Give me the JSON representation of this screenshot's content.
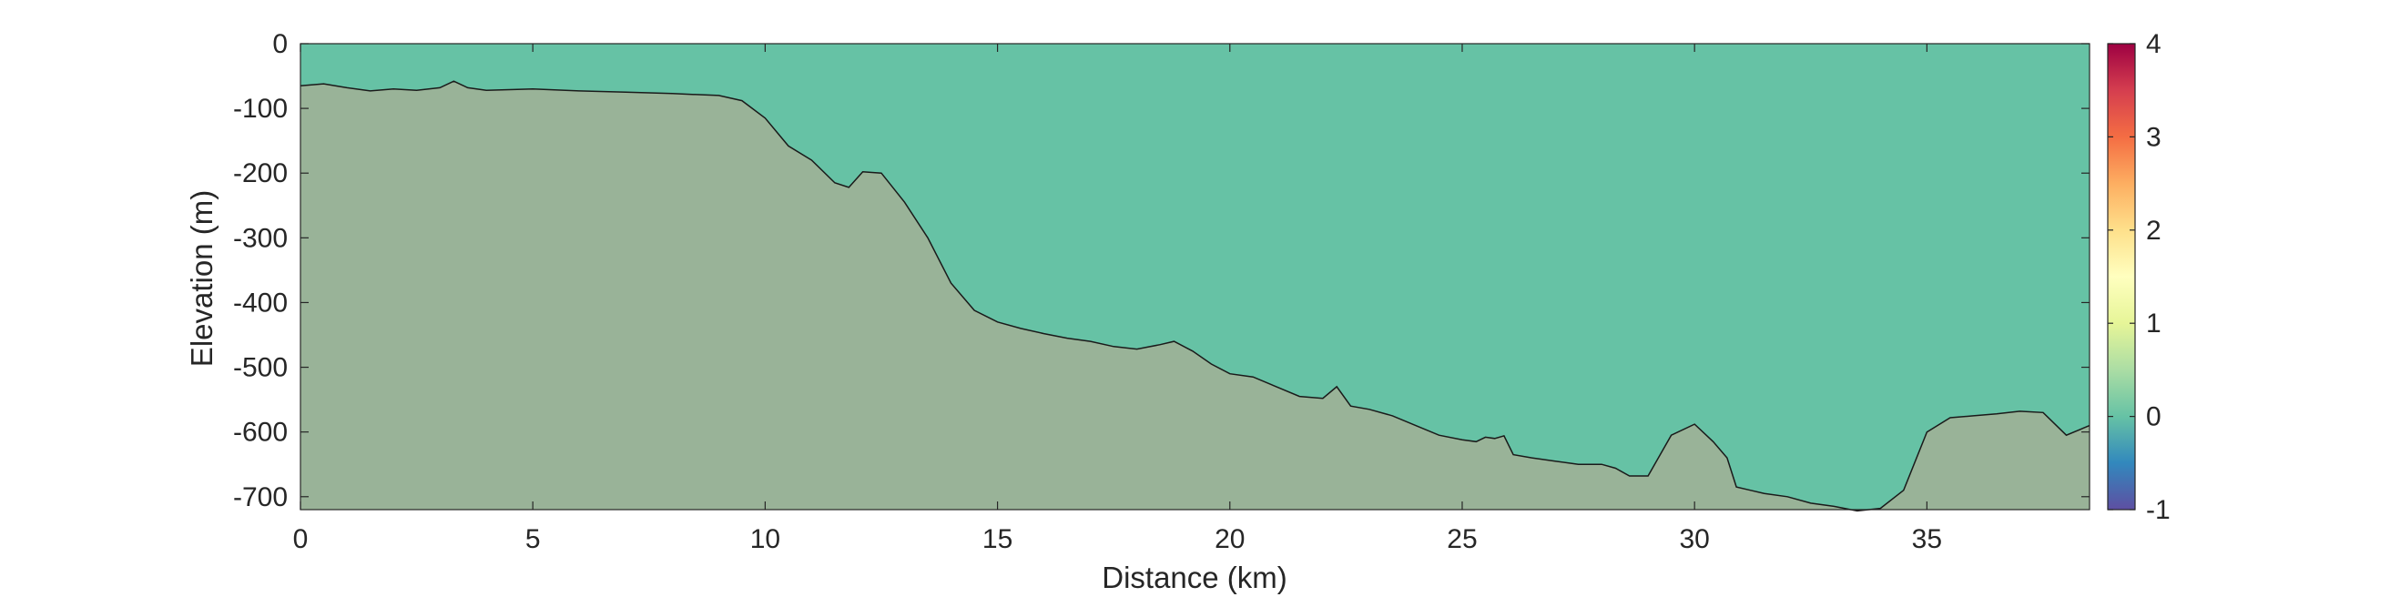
{
  "chart_data": {
    "type": "area",
    "xlabel": "Distance (km)",
    "ylabel": "Elevation (m)",
    "xlim": [
      0,
      38.5
    ],
    "ylim": [
      -720,
      0
    ],
    "x_ticks": [
      0,
      5,
      10,
      15,
      20,
      25,
      30,
      35
    ],
    "y_ticks": [
      0,
      -100,
      -200,
      -300,
      -400,
      -500,
      -600,
      -700
    ],
    "colorbar": {
      "limits": [
        -1,
        4
      ],
      "ticks": [
        4,
        3,
        2,
        1,
        0,
        -1
      ],
      "colormap": "spectral",
      "colors": [
        "#5e4fa2",
        "#3288bd",
        "#66c2a5",
        "#abdda4",
        "#e6f598",
        "#ffffbf",
        "#fee08b",
        "#fdae61",
        "#f46d43",
        "#d53e4f",
        "#9e0142"
      ]
    },
    "water_color": "#66c2a5",
    "seabed_color": "#99b398",
    "seabed_profile": {
      "x": [
        0,
        0.5,
        1,
        1.5,
        2,
        2.5,
        3,
        3.3,
        3.6,
        4,
        5,
        6,
        7,
        8,
        9,
        9.5,
        10,
        10.5,
        11,
        11.5,
        11.8,
        12.1,
        12.5,
        13,
        13.5,
        14,
        14.5,
        15,
        15.5,
        16,
        16.5,
        17,
        17.5,
        18,
        18.5,
        18.8,
        19.2,
        19.6,
        20,
        20.5,
        21,
        21.5,
        22,
        22.3,
        22.6,
        23,
        23.5,
        24,
        24.5,
        25,
        25.3,
        25.5,
        25.7,
        25.9,
        26.1,
        26.5,
        27,
        27.5,
        28,
        28.3,
        28.6,
        29,
        29.5,
        30,
        30.4,
        30.7,
        30.9,
        31.2,
        31.5,
        32,
        32.5,
        33,
        33.5,
        34,
        34.5,
        35,
        35.5,
        36,
        36.5,
        37,
        37.5,
        38,
        38.5
      ],
      "y": [
        -65,
        -62,
        -68,
        -73,
        -70,
        -72,
        -68,
        -58,
        -68,
        -72,
        -70,
        -73,
        -75,
        -77,
        -80,
        -88,
        -115,
        -158,
        -180,
        -215,
        -222,
        -198,
        -200,
        -245,
        -300,
        -370,
        -412,
        -430,
        -440,
        -448,
        -455,
        -460,
        -468,
        -472,
        -465,
        -460,
        -475,
        -495,
        -510,
        -515,
        -530,
        -545,
        -548,
        -530,
        -560,
        -565,
        -575,
        -590,
        -605,
        -612,
        -615,
        -608,
        -610,
        -606,
        -635,
        -640,
        -645,
        -650,
        -650,
        -656,
        -668,
        -668,
        -605,
        -588,
        -615,
        -640,
        -685,
        -690,
        -695,
        -700,
        -710,
        -715,
        -722,
        -718,
        -690,
        -600,
        -578,
        -575,
        -572,
        -568,
        -570,
        -605,
        -590
      ]
    }
  }
}
